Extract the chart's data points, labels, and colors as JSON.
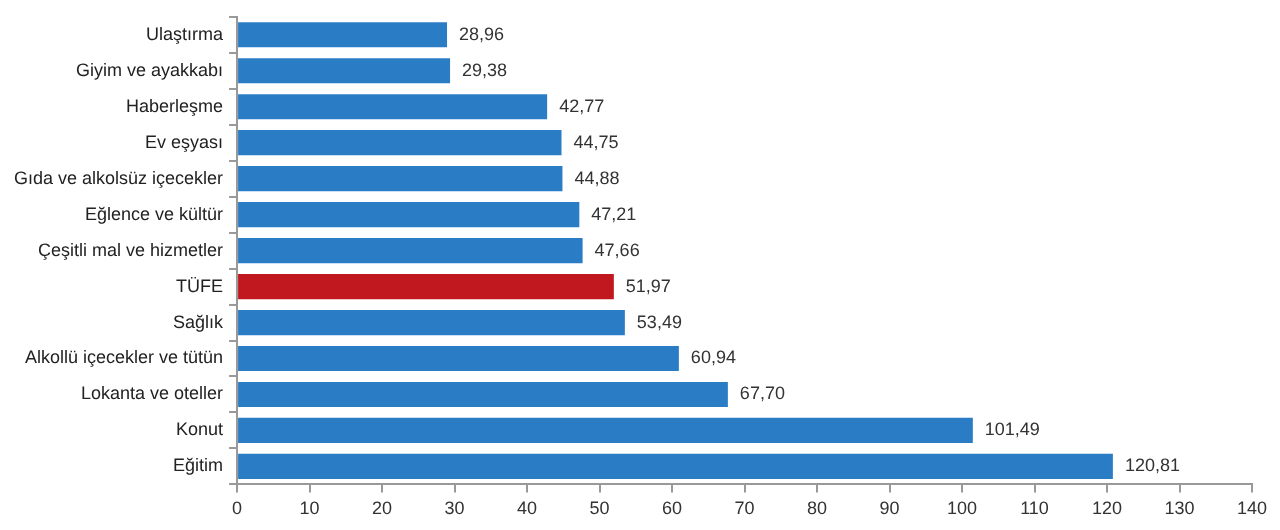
{
  "chart_data": {
    "type": "bar",
    "orientation": "horizontal",
    "categories": [
      "Ulaştırma",
      "Giyim ve ayakkabı",
      "Haberleşme",
      "Ev eşyası",
      "Gıda ve alkolsüz içecekler",
      "Eğlence ve kültür",
      "Çeşitli mal ve hizmetler",
      "TÜFE",
      "Sağlık",
      "Alkollü içecekler ve tütün",
      "Lokanta ve oteller",
      "Konut",
      "Eğitim"
    ],
    "values": [
      28.96,
      29.38,
      42.77,
      44.75,
      44.88,
      47.21,
      47.66,
      51.97,
      53.49,
      60.94,
      67.7,
      101.49,
      120.81
    ],
    "colors": [
      "#2a7cc4",
      "#2a7cc4",
      "#2a7cc4",
      "#2a7cc4",
      "#2a7cc4",
      "#2a7cc4",
      "#2a7cc4",
      "#c0181e",
      "#2a7cc4",
      "#2a7cc4",
      "#2a7cc4",
      "#2a7cc4",
      "#2a7cc4"
    ],
    "value_labels": [
      "28,96",
      "29,38",
      "42,77",
      "44,75",
      "44,88",
      "47,21",
      "47,66",
      "51,97",
      "53,49",
      "60,94",
      "67,70",
      "101,49",
      "120,81"
    ],
    "xlim": [
      0,
      140
    ],
    "xticks": [
      0,
      10,
      20,
      30,
      40,
      50,
      60,
      70,
      80,
      90,
      100,
      110,
      120,
      130,
      140
    ],
    "grid": false,
    "legend": false
  }
}
